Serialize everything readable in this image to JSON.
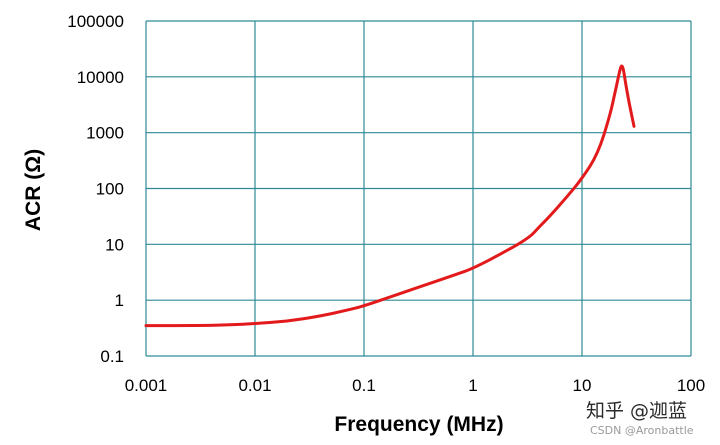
{
  "chart_data": {
    "type": "line",
    "xlabel": "Frequency (MHz)",
    "ylabel": "ACR (Ω)",
    "xscale": "log",
    "yscale": "log",
    "xlim": [
      0.001,
      100
    ],
    "ylim": [
      0.1,
      100000
    ],
    "x_ticks": [
      "0.001",
      "0.01",
      "0.1",
      "1",
      "10",
      "100"
    ],
    "y_ticks": [
      "0.1",
      "1",
      "10",
      "100",
      "1000",
      "10000",
      "100000"
    ],
    "grid": true,
    "line_color": "#e31a1c",
    "grid_color": "#2f8a96",
    "series": [
      {
        "x": [
          0.001,
          0.003,
          0.006,
          0.01,
          0.02,
          0.04,
          0.07,
          0.1,
          0.2,
          0.4,
          0.7,
          1,
          2,
          3.3,
          4,
          5,
          7,
          10,
          14,
          18,
          20,
          22,
          23,
          24,
          25,
          27,
          30
        ],
        "y": [
          0.35,
          0.35,
          0.36,
          0.38,
          0.42,
          0.52,
          0.66,
          0.79,
          1.25,
          2.0,
          2.9,
          3.7,
          7.5,
          13.3,
          20,
          31,
          65,
          150,
          420,
          2000,
          5000,
          12000,
          16500,
          14000,
          8000,
          3500,
          1300
        ]
      }
    ]
  },
  "watermark": {
    "main": "知乎 @迦蓝",
    "sub": "CSDN @Aronbattle"
  }
}
